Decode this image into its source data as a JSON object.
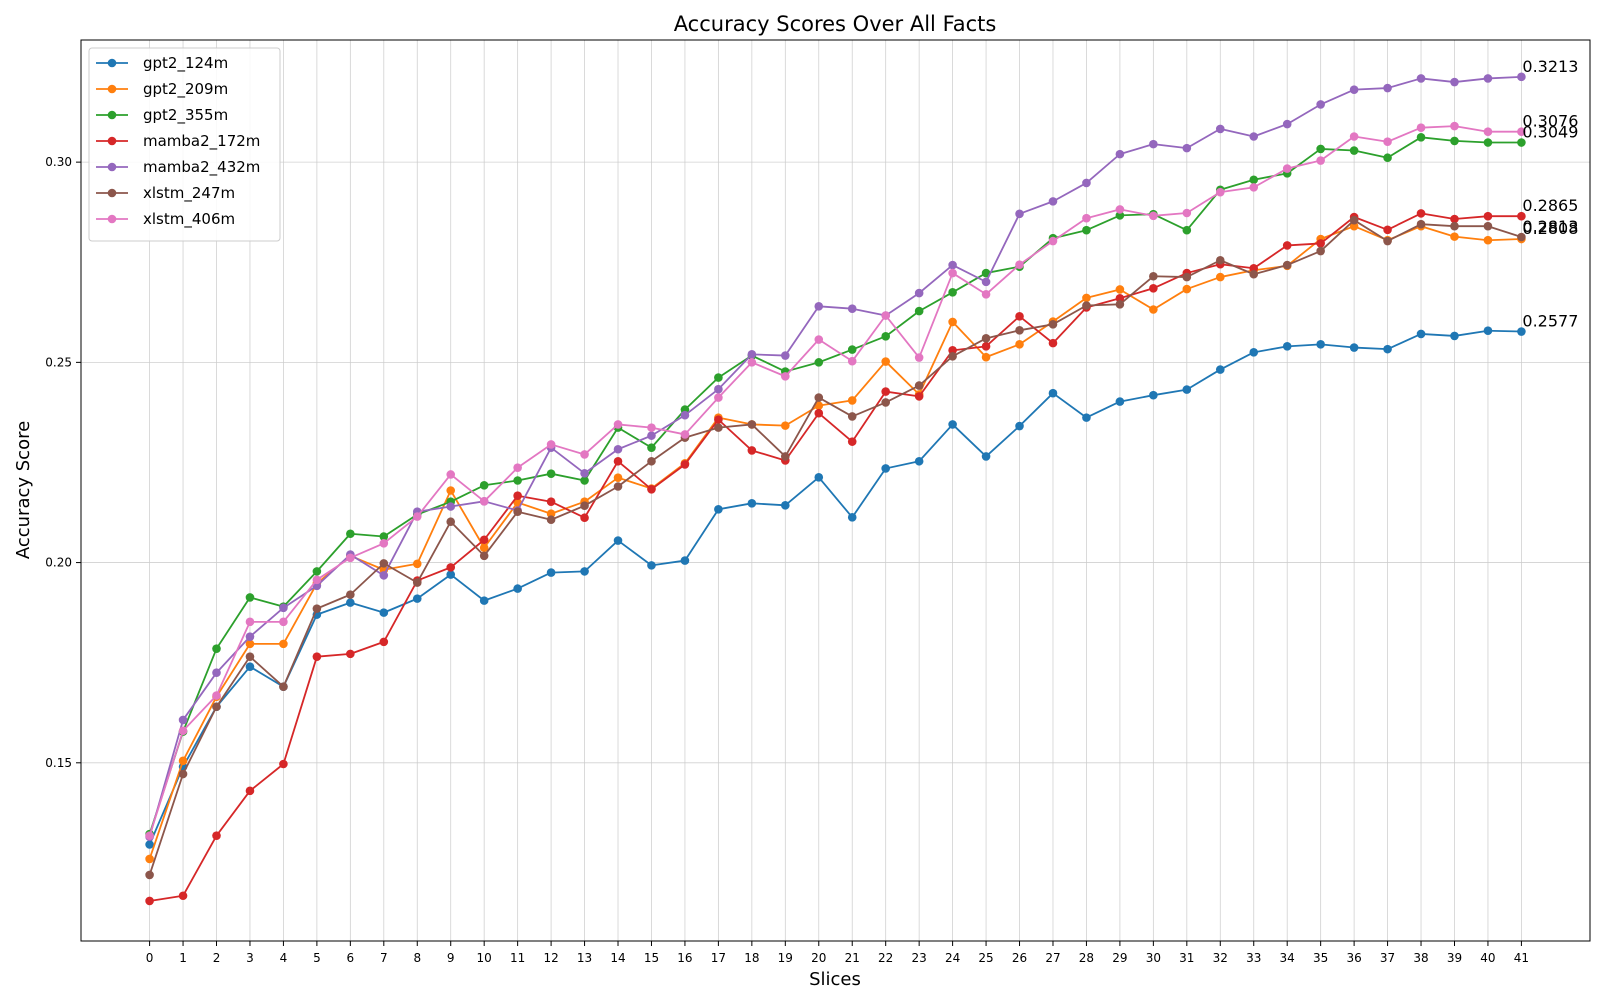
{
  "chart_data": {
    "type": "line",
    "title": "Accuracy Scores Over All Facts",
    "xlabel": "Slices",
    "ylabel": "Accuracy Score",
    "x": [
      0,
      1,
      2,
      3,
      4,
      5,
      6,
      7,
      8,
      9,
      10,
      11,
      12,
      13,
      14,
      15,
      16,
      17,
      18,
      19,
      20,
      21,
      22,
      23,
      24,
      25,
      26,
      27,
      28,
      29,
      30,
      31,
      32,
      33,
      34,
      35,
      36,
      37,
      38,
      39,
      40,
      41
    ],
    "xlim": [
      -2.05,
      43.05
    ],
    "ylim": [
      0.1055,
      0.3305
    ],
    "yticks": [
      0.15,
      0.2,
      0.25,
      0.3
    ],
    "ytick_labels": [
      "0.15",
      "0.20",
      "0.25",
      "0.30"
    ],
    "grid": true,
    "legend_position": "top-left",
    "series": [
      {
        "name": "gpt2_124m",
        "color": "#1f77b4",
        "values": [
          0.1296,
          0.149,
          0.164,
          0.174,
          0.169,
          0.187,
          0.19,
          0.1875,
          0.191,
          0.197,
          0.1905,
          0.1935,
          0.1975,
          0.1978,
          0.2055,
          0.1993,
          0.2005,
          0.2133,
          0.2148,
          0.2143,
          0.2213,
          0.2113,
          0.2235,
          0.2253,
          0.2345,
          0.2265,
          0.2341,
          0.2423,
          0.2362,
          0.2402,
          0.2418,
          0.2432,
          0.2482,
          0.2525,
          0.254,
          0.2545,
          0.2537,
          0.2533,
          0.2571,
          0.2566,
          0.2579,
          0.2577
        ],
        "end_label": "0.2577"
      },
      {
        "name": "gpt2_209m",
        "color": "#ff7f0e",
        "values": [
          0.126,
          0.1505,
          0.1665,
          0.1797,
          0.1797,
          0.1948,
          0.2017,
          0.1982,
          0.1997,
          0.218,
          0.2037,
          0.215,
          0.2122,
          0.2152,
          0.2212,
          0.2185,
          0.2248,
          0.2362,
          0.2345,
          0.2342,
          0.2392,
          0.2405,
          0.2502,
          0.242,
          0.2601,
          0.2513,
          0.2545,
          0.2602,
          0.2661,
          0.2682,
          0.2632,
          0.2683,
          0.2713,
          0.273,
          0.2741,
          0.2808,
          0.284,
          0.2805,
          0.284,
          0.2814,
          0.2805,
          0.2808
        ],
        "end_label": "0.2808"
      },
      {
        "name": "gpt2_355m",
        "color": "#2ca02c",
        "values": [
          0.1322,
          0.1578,
          0.1785,
          0.1913,
          0.189,
          0.1978,
          0.2072,
          0.2065,
          0.212,
          0.2152,
          0.2193,
          0.2205,
          0.2222,
          0.2205,
          0.2337,
          0.2287,
          0.2382,
          0.2462,
          0.2517,
          0.2477,
          0.25,
          0.2532,
          0.2565,
          0.2628,
          0.2675,
          0.2723,
          0.2739,
          0.281,
          0.283,
          0.2867,
          0.287,
          0.283,
          0.2931,
          0.2956,
          0.2972,
          0.3033,
          0.3029,
          0.3011,
          0.3062,
          0.3053,
          0.3049,
          0.3049
        ],
        "end_label": "0.3049"
      },
      {
        "name": "mamba2_172m",
        "color": "#d62728",
        "values": [
          0.1155,
          0.1168,
          0.1318,
          0.143,
          0.1497,
          0.1765,
          0.1772,
          0.1802,
          0.1955,
          0.1988,
          0.2057,
          0.2167,
          0.2152,
          0.2112,
          0.2253,
          0.2183,
          0.2245,
          0.2357,
          0.228,
          0.2255,
          0.2373,
          0.2302,
          0.2427,
          0.2415,
          0.253,
          0.254,
          0.2615,
          0.2548,
          0.2637,
          0.266,
          0.2685,
          0.2723,
          0.2745,
          0.2735,
          0.2792,
          0.2797,
          0.2863,
          0.2831,
          0.2872,
          0.2858,
          0.2865,
          0.2865
        ],
        "end_label": "0.2865"
      },
      {
        "name": "mamba2_432m",
        "color": "#9467bd",
        "values": [
          0.1315,
          0.1607,
          0.1725,
          0.1815,
          0.1887,
          0.1942,
          0.202,
          0.1968,
          0.2127,
          0.214,
          0.2153,
          0.213,
          0.2287,
          0.2223,
          0.2283,
          0.2317,
          0.2368,
          0.2433,
          0.252,
          0.2517,
          0.264,
          0.2634,
          0.2617,
          0.2673,
          0.2743,
          0.2701,
          0.2871,
          0.2902,
          0.2948,
          0.302,
          0.3045,
          0.3035,
          0.3083,
          0.3064,
          0.3095,
          0.3144,
          0.3181,
          0.3185,
          0.3209,
          0.32,
          0.3209,
          0.3213
        ],
        "end_label": "0.3213"
      },
      {
        "name": "xlstm_247m",
        "color": "#8c564b",
        "values": [
          0.122,
          0.1472,
          0.164,
          0.1765,
          0.169,
          0.1885,
          0.192,
          0.1998,
          0.195,
          0.2102,
          0.2017,
          0.2127,
          0.2107,
          0.2142,
          0.219,
          0.2253,
          0.2312,
          0.2337,
          0.2345,
          0.2265,
          0.2412,
          0.2365,
          0.24,
          0.2442,
          0.2515,
          0.256,
          0.258,
          0.2595,
          0.2642,
          0.2645,
          0.2715,
          0.2713,
          0.2755,
          0.272,
          0.2743,
          0.2778,
          0.2855,
          0.2803,
          0.2845,
          0.284,
          0.284,
          0.2813
        ],
        "end_label": "0.2813"
      },
      {
        "name": "xlstm_406m",
        "color": "#e377c2",
        "values": [
          0.1318,
          0.158,
          0.1668,
          0.1852,
          0.1852,
          0.1957,
          0.2012,
          0.2048,
          0.2115,
          0.222,
          0.2153,
          0.2237,
          0.2295,
          0.227,
          0.2345,
          0.2337,
          0.232,
          0.2412,
          0.25,
          0.2465,
          0.2557,
          0.2503,
          0.2617,
          0.2512,
          0.2723,
          0.267,
          0.2744,
          0.2803,
          0.286,
          0.2882,
          0.2866,
          0.2873,
          0.2925,
          0.2937,
          0.2984,
          0.3004,
          0.3064,
          0.3051,
          0.3086,
          0.309,
          0.3076,
          0.3076
        ],
        "end_label": "0.3076"
      }
    ]
  }
}
